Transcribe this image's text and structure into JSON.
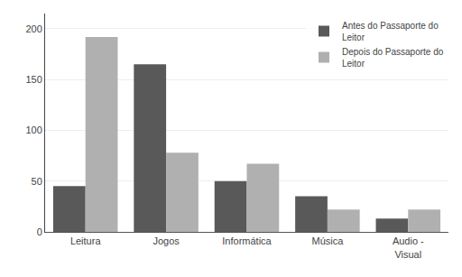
{
  "chart_data": {
    "type": "bar",
    "categories": [
      "Leitura",
      "Jogos",
      "Informática",
      "Música",
      "Audio -\nVisual"
    ],
    "series": [
      {
        "name": "Antes do Passaporte do\nLeitor",
        "color": "#595959",
        "values": [
          45,
          165,
          50,
          35,
          13
        ]
      },
      {
        "name": "Depois do Passaporte do\nLeitor",
        "color": "#b0b0b0",
        "values": [
          192,
          78,
          67,
          22,
          22
        ]
      }
    ],
    "ylim": [
      0,
      215
    ],
    "yticks": [
      0,
      50,
      100,
      150,
      200
    ],
    "grid": true,
    "legend": "upper right"
  }
}
